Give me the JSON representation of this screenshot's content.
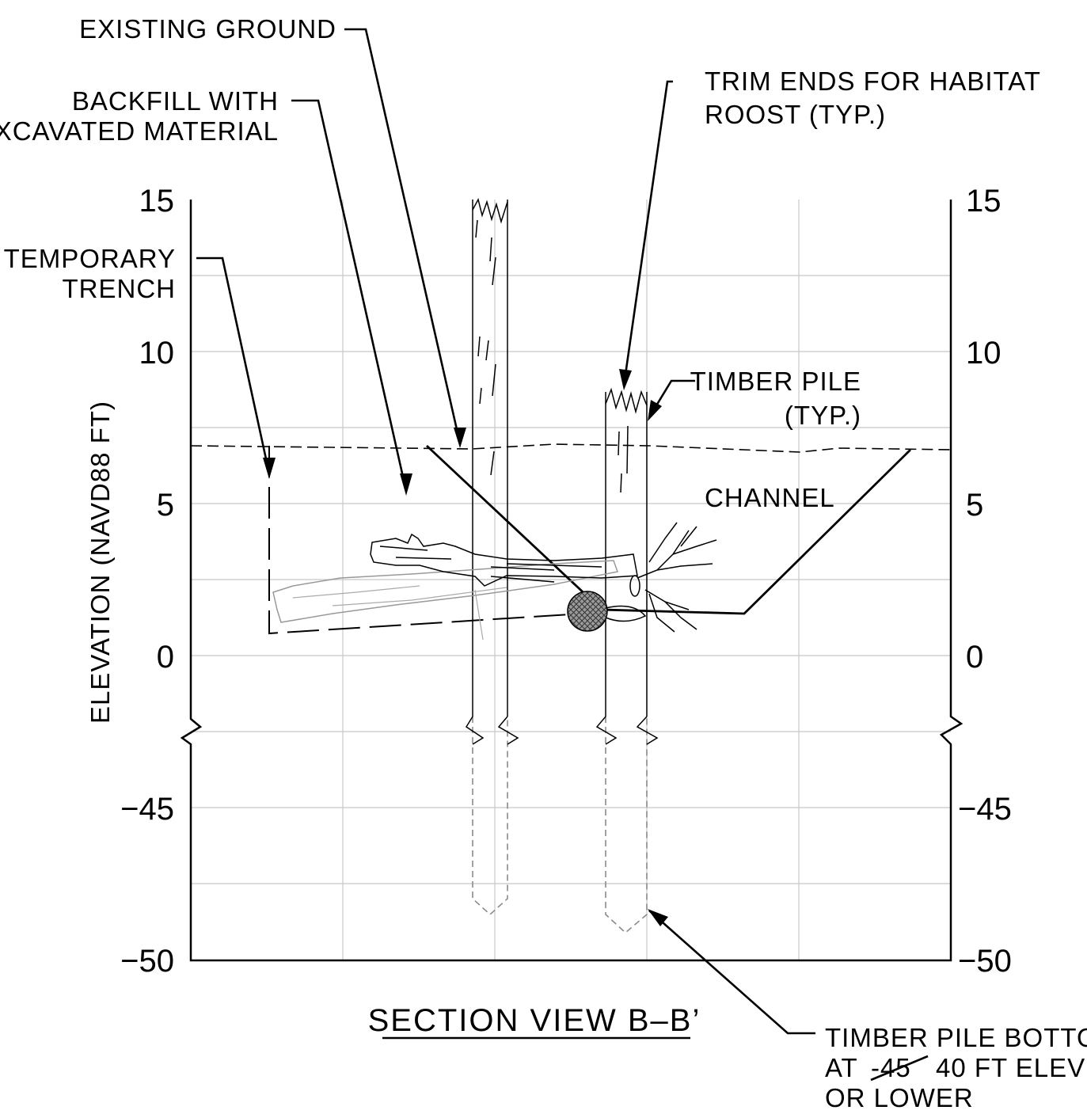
{
  "labels": {
    "existing_ground": "EXISTING GROUND",
    "backfill_line1": "BACKFILL WITH",
    "backfill_line2": "EXCAVATED MATERIAL",
    "trim_line1": "TRIM ENDS FOR HABITAT",
    "trim_line2": "ROOST (TYP.)",
    "temp_line1": "TEMPORARY",
    "temp_line2": "TRENCH",
    "pile_line1": "TIMBER PILE",
    "pile_line2": "(TYP.)",
    "channel": "CHANNEL",
    "bottom_line1": "TIMBER PILE BOTTOM",
    "bottom_line2_prefix": "AT",
    "bottom_line2_struck": "-45",
    "bottom_line2_suffix": "40 FT ELEV",
    "bottom_line3": "OR LOWER"
  },
  "axis": {
    "title": "ELEVATION (NAVD88 FT)",
    "ticks": [
      "15",
      "10",
      "5",
      "0",
      "−45",
      "−50"
    ]
  },
  "section_title": "SECTION VIEW B–B’",
  "colors": {
    "line": "#000000",
    "grid": "#c8c8c8",
    "hidden": "#8a8a8a"
  }
}
